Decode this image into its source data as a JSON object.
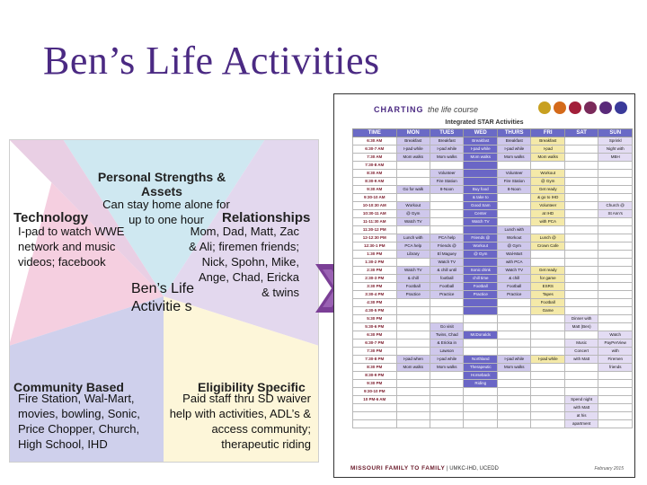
{
  "title": "Ben’s Life Activities",
  "star": {
    "personal_strengths_heading": "Personal Strengths & Assets",
    "personal_strengths_text": "Can stay home alone for up to one hour",
    "technology_heading": "Technology",
    "technology_text": "I-pad to watch WWE network and music videos; facebook",
    "relationships_heading": "Relationships",
    "relationships_text": "Mom, Dad, Matt, Zac & Ali; firemen friends; Nick, Spohn, Mike, Ange, Chad, Ericka & twins",
    "center_text": "Ben’s Life Activitie s",
    "community_heading": "Community Based",
    "community_text": "Fire Station, Wal-Mart, movies, bowling, Sonic, Price Chopper, Church, High School, IHD",
    "eligibility_heading": "Eligibility Specific",
    "eligibility_text": "Paid staff thru SD waiver help with activities, ADL’s & access community; therapeutic riding"
  },
  "schedule": {
    "charting_brand": "CHARTING",
    "charting_rest": "the life course",
    "subtitle": "Integrated STAR Activities",
    "columns": [
      "TIME",
      "MON",
      "TUES",
      "WED",
      "THURS",
      "FRI",
      "SAT",
      "SUN"
    ],
    "rows": [
      [
        "6:30 AM",
        "Breakfast",
        "Breakfast",
        "Breakfast",
        "Breakfast",
        "Breakfast",
        "",
        "Sprinkl"
      ],
      [
        "6:30-7 AM",
        "I-pad while",
        "I-pad while",
        "I-pad while",
        "I-pad while",
        "I-pad",
        "",
        "Night with"
      ],
      [
        "7:30 AM",
        "Mom walks",
        "Mom walks",
        "Mom walks",
        "Mom walks",
        "Mom walks",
        "",
        "MBH"
      ],
      [
        "7:30-8 AM",
        "",
        "",
        "",
        "",
        "",
        "",
        ""
      ],
      [
        "8:30 AM",
        "",
        "Volunteer",
        "",
        "Volunteer",
        "Workout",
        "",
        ""
      ],
      [
        "8:30-9 AM",
        "",
        "Fire Station",
        "",
        "Fire Station",
        "@ Gym",
        "",
        ""
      ],
      [
        "9:30 AM",
        "Go for walk",
        "8-Noon",
        "Buy food",
        "8-Noon",
        "Get ready",
        "",
        ""
      ],
      [
        "9:30-10 AM",
        "",
        "",
        "& take to",
        "",
        "& go to IHD",
        "",
        ""
      ],
      [
        "10-10:30 AM",
        "Workout",
        "",
        "Good Sam",
        "",
        "Volunteer",
        "",
        "Church @"
      ],
      [
        "10:30-11 AM",
        "@ Gym",
        "",
        "Center",
        "",
        "at IHD",
        "",
        "St Ann's"
      ],
      [
        "11-11:30 AM",
        "Watch TV",
        "",
        "Watch TV",
        "",
        "with PCA",
        "",
        ""
      ],
      [
        "11:30-12 PM",
        "",
        "",
        "",
        "Lunch with",
        "",
        "",
        ""
      ],
      [
        "12-12:30 PM",
        "Lunch with",
        "PCA help",
        "Friends @",
        "Workout",
        "Lunch @",
        "",
        ""
      ],
      [
        "12:30-1 PM",
        "PCA help",
        "Friends @",
        "Workout",
        "@ Gym",
        "Crown Cafe",
        "",
        ""
      ],
      [
        "1:30 PM",
        "Library",
        "El Maguey",
        "@ Gym",
        "Wal-Mart",
        "",
        "",
        ""
      ],
      [
        "1:30-2 PM",
        "",
        "Watch TV",
        "",
        "with PCA",
        "",
        "",
        ""
      ],
      [
        "2:30 PM",
        "Watch TV",
        "& chill until",
        "Sonic drink",
        "Watch TV",
        "Get ready",
        "",
        ""
      ],
      [
        "2:30-3 PM",
        "& chill",
        "football",
        "chill time",
        "& chill",
        "for game",
        "",
        ""
      ],
      [
        "3:30 PM",
        "Football",
        "Football",
        "Football",
        "Football",
        "ESRS",
        "",
        ""
      ],
      [
        "3:30-4 PM",
        "Practice",
        "Practice",
        "Practice",
        "Practice",
        "Tapes",
        "",
        ""
      ],
      [
        "4:30 PM",
        "",
        "",
        "",
        "",
        "Football",
        "",
        ""
      ],
      [
        "4:30-5 PM",
        "",
        "",
        "",
        "",
        "Game",
        "",
        ""
      ],
      [
        "5:30 PM",
        "",
        "",
        "",
        "",
        "",
        "Dinner with",
        ""
      ],
      [
        "5:30-6 PM",
        "",
        "Go visit",
        "",
        "",
        "",
        "Matt (Ben)",
        ""
      ],
      [
        "6:30 PM",
        "",
        "Twins, Chad",
        "McDonalds",
        "",
        "",
        "",
        "Watch"
      ],
      [
        "6:30-7 PM",
        "",
        "& Ericka in",
        "",
        "",
        "",
        "Music",
        "PayPerView"
      ],
      [
        "7:30 PM",
        "",
        "Lawson",
        "",
        "",
        "",
        "Concert",
        "with"
      ],
      [
        "7:30-8 PM",
        "I-pad when",
        "I-pad while",
        "Northland",
        "I-pad while",
        "I-pad while",
        "with Matt",
        "Firemen"
      ],
      [
        "8:30 PM",
        "Mom walks",
        "Mom walks",
        "Therapeutic",
        "Mom walks",
        "",
        "",
        "friends"
      ],
      [
        "8:30-9 PM",
        "",
        "",
        "Horseback",
        "",
        "",
        "",
        ""
      ],
      [
        "9:30 PM",
        "",
        "",
        "Riding",
        "",
        "",
        "",
        ""
      ],
      [
        "9:30-10 PM",
        "",
        "",
        "",
        "",
        "",
        "",
        ""
      ],
      [
        "10 PM-6 AM",
        "",
        "",
        "",
        "",
        "",
        "Spend night",
        ""
      ],
      [
        "",
        "",
        "",
        "",
        "",
        "",
        "with Matt",
        ""
      ],
      [
        "",
        "",
        "",
        "",
        "",
        "",
        "at his",
        ""
      ],
      [
        "",
        "",
        "",
        "",
        "",
        "",
        "apartment",
        ""
      ]
    ],
    "footer_brand": "MISSOURI FAMILY TO FAMILY",
    "footer_rest": "| UMKC-IHD, UCEDD",
    "date": "February 2015"
  }
}
